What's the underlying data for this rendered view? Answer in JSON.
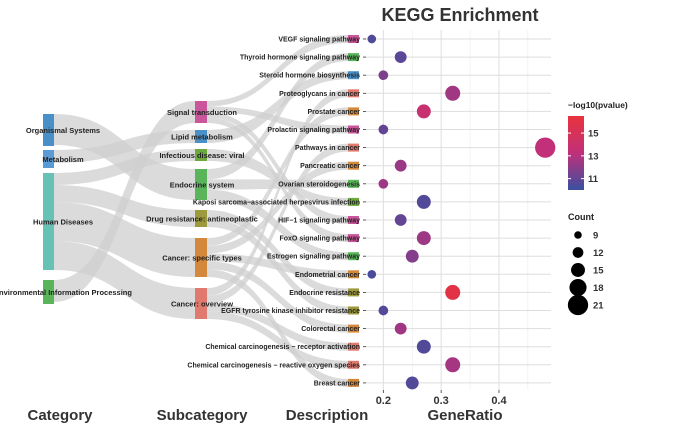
{
  "chart_data": {
    "type": "scatter",
    "title": "KEGG Enrichment",
    "xlabel": "GeneRatio",
    "xlim": [
      0.17,
      0.49
    ],
    "xticks": [
      0.2,
      0.3,
      0.4
    ],
    "xtick_labels": [
      "0.2",
      "0.3",
      "0.4"
    ],
    "grid": true,
    "column_labels": {
      "category": "Category",
      "subcategory": "Subcategory",
      "description": "Description"
    },
    "categories": [
      {
        "name": "Organismal Systems",
        "color": "#4a90c8"
      },
      {
        "name": "Metabolism",
        "color": "#5b9bd5"
      },
      {
        "name": "Human Diseases",
        "color": "#66c2b5"
      },
      {
        "name": "Environmental Information Processing",
        "color": "#5ab45a"
      }
    ],
    "subcategories": [
      {
        "name": "Signal transduction",
        "color": "#c9559a"
      },
      {
        "name": "Lipid metabolism",
        "color": "#4a90c8"
      },
      {
        "name": "Infectious disease: viral",
        "color": "#6aaa3c"
      },
      {
        "name": "Endocrine system",
        "color": "#5ab45a"
      },
      {
        "name": "Drug resistance: antineoplastic",
        "color": "#9c9a3c"
      },
      {
        "name": "Cancer: specific types",
        "color": "#d4883c"
      },
      {
        "name": "Cancer: overview",
        "color": "#e07a6e"
      }
    ],
    "terms": [
      {
        "name": "VEGF signaling pathway",
        "gene_ratio": 0.18,
        "count": 10,
        "neg_log10_p": 10.5
      },
      {
        "name": "Thyroid hormone signaling pathway",
        "gene_ratio": 0.23,
        "count": 13,
        "neg_log10_p": 10.8
      },
      {
        "name": "Steroid hormone biosynthesis",
        "gene_ratio": 0.2,
        "count": 11,
        "neg_log10_p": 11.6
      },
      {
        "name": "Proteoglycans in cancer",
        "gene_ratio": 0.32,
        "count": 16,
        "neg_log10_p": 12.5
      },
      {
        "name": "Prostate cancer",
        "gene_ratio": 0.27,
        "count": 15,
        "neg_log10_p": 13.8
      },
      {
        "name": "Prolactin signaling pathway",
        "gene_ratio": 0.2,
        "count": 11,
        "neg_log10_p": 11.0
      },
      {
        "name": "Pathways in cancer",
        "gene_ratio": 0.48,
        "count": 21,
        "neg_log10_p": 13.3
      },
      {
        "name": "Pancreatic cancer",
        "gene_ratio": 0.23,
        "count": 13,
        "neg_log10_p": 12.3
      },
      {
        "name": "Ovarian steroidogenesis",
        "gene_ratio": 0.2,
        "count": 11,
        "neg_log10_p": 12.4
      },
      {
        "name": "Kaposi sarcoma−associated herpesvirus infection",
        "gene_ratio": 0.27,
        "count": 15,
        "neg_log10_p": 10.6
      },
      {
        "name": "HIF−1 signaling pathway",
        "gene_ratio": 0.23,
        "count": 13,
        "neg_log10_p": 11.0
      },
      {
        "name": "FoxO signaling pathway",
        "gene_ratio": 0.27,
        "count": 15,
        "neg_log10_p": 12.4
      },
      {
        "name": "Estrogen signaling pathway",
        "gene_ratio": 0.25,
        "count": 14,
        "neg_log10_p": 11.8
      },
      {
        "name": "Endometrial cancer",
        "gene_ratio": 0.18,
        "count": 10,
        "neg_log10_p": 10.4
      },
      {
        "name": "Endocrine resistance",
        "gene_ratio": 0.32,
        "count": 16,
        "neg_log10_p": 16.0
      },
      {
        "name": "EGFR tyrosine kinase inhibitor resistance",
        "gene_ratio": 0.2,
        "count": 11,
        "neg_log10_p": 10.6
      },
      {
        "name": "Colorectal cancer",
        "gene_ratio": 0.23,
        "count": 13,
        "neg_log10_p": 12.5
      },
      {
        "name": "Chemical carcinogenesis − receptor activation",
        "gene_ratio": 0.27,
        "count": 15,
        "neg_log10_p": 10.6
      },
      {
        "name": "Chemical carcinogenesis − reactive oxygen species",
        "gene_ratio": 0.32,
        "count": 16,
        "neg_log10_p": 12.6
      },
      {
        "name": "Breast cancer",
        "gene_ratio": 0.25,
        "count": 14,
        "neg_log10_p": 10.6
      }
    ],
    "color_legend": {
      "title": "−log10(pvalue)",
      "range": [
        10,
        16.5
      ],
      "ticks": [
        11,
        13,
        15
      ],
      "tick_labels": [
        "11",
        "13",
        "15"
      ],
      "colors": [
        "#3a4fa0",
        "#c0307a",
        "#e8343c"
      ]
    },
    "size_legend": {
      "title": "Count",
      "values": [
        9,
        12,
        15,
        18,
        21
      ],
      "labels": [
        "9",
        "12",
        "15",
        "18",
        "21"
      ]
    }
  }
}
